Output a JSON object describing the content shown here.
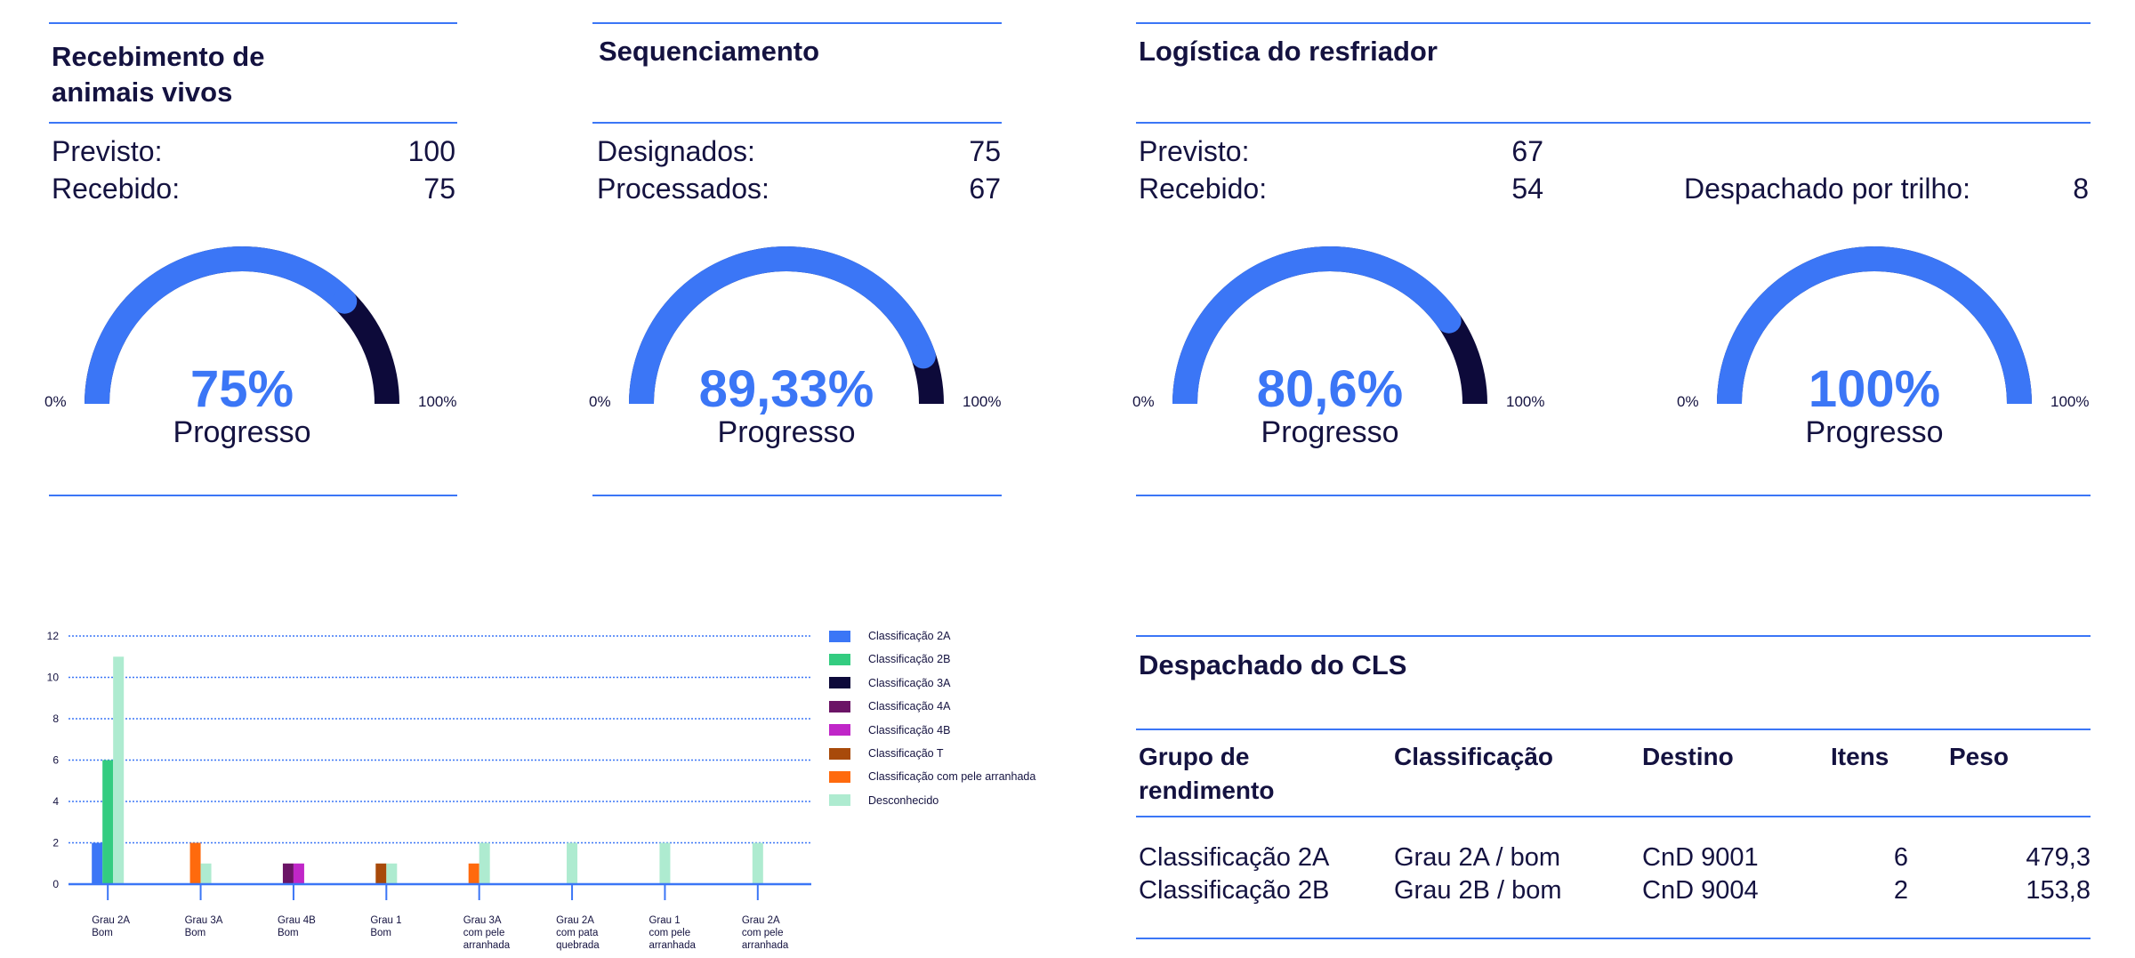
{
  "colors": {
    "accent": "#3b76f6",
    "track": "#0d0a3a",
    "text": "#141240"
  },
  "cards": [
    {
      "title": "Recebimento de animais vivos",
      "rows": [
        {
          "label": "Previsto:",
          "value": "100"
        },
        {
          "label": "Recebido:",
          "value": "75"
        }
      ],
      "gauges": [
        {
          "percent_label": "75%",
          "progress": 0.75,
          "caption": "Progresso",
          "min_label": "0%",
          "max_label": "100%"
        }
      ]
    },
    {
      "title": "Sequenciamento",
      "rows": [
        {
          "label": "Designados:",
          "value": "75"
        },
        {
          "label": "Processados:",
          "value": "67"
        }
      ],
      "gauges": [
        {
          "percent_label": "89,33%",
          "progress": 0.8933,
          "caption": "Progresso",
          "min_label": "0%",
          "max_label": "100%"
        }
      ]
    },
    {
      "title": "Logística do resfriador",
      "rows": [
        {
          "label": "Previsto:",
          "value": "67"
        },
        {
          "label": "Recebido:",
          "value": "54"
        },
        {
          "label": "Despachado por trilho:",
          "value": "8"
        }
      ],
      "gauges": [
        {
          "percent_label": "80,6%",
          "progress": 0.806,
          "caption": "Progresso",
          "min_label": "0%",
          "max_label": "100%"
        },
        {
          "percent_label": "100%",
          "progress": 1.0,
          "caption": "Progresso",
          "min_label": "0%",
          "max_label": "100%"
        }
      ]
    }
  ],
  "chart_data": {
    "type": "bar",
    "title": "",
    "xlabel": "",
    "ylabel": "",
    "ylim": [
      0,
      12
    ],
    "yticks": [
      "0",
      "2",
      "4",
      "6",
      "8",
      "10",
      "12"
    ],
    "grid": true,
    "legend_placement": "right",
    "categories": [
      [
        "Grau 2A",
        "Bom"
      ],
      [
        "Grau 3A",
        "Bom"
      ],
      [
        "Grau 4B",
        "Bom"
      ],
      [
        "Grau 1",
        "Bom"
      ],
      [
        "Grau 3A",
        "com pele",
        "arranhada"
      ],
      [
        "Grau 2A",
        "com pata",
        "quebrada"
      ],
      [
        "Grau 1",
        "com pele",
        "arranhada"
      ],
      [
        "Grau 2A",
        "com pele",
        "arranhada"
      ]
    ],
    "series": [
      {
        "name": "Classificação 2A",
        "color": "#3b76f6",
        "values": [
          2,
          0,
          0,
          0,
          0,
          0,
          0,
          0
        ]
      },
      {
        "name": "Classificação 2B",
        "color": "#33cc80",
        "values": [
          6,
          0,
          0,
          0,
          0,
          0,
          0,
          0
        ]
      },
      {
        "name": "Classificação 3A",
        "color": "#0d0a3a",
        "values": [
          0,
          0,
          0,
          0,
          0,
          0,
          0,
          0
        ]
      },
      {
        "name": "Classificação 4A",
        "color": "#6b1466",
        "values": [
          0,
          0,
          1,
          0,
          0,
          0,
          0,
          0
        ]
      },
      {
        "name": "Classificação 4B",
        "color": "#c026c8",
        "values": [
          0,
          0,
          1,
          0,
          0,
          0,
          0,
          0
        ]
      },
      {
        "name": "Classificação T",
        "color": "#a84a0a",
        "values": [
          0,
          0,
          0,
          1,
          0,
          0,
          0,
          0
        ]
      },
      {
        "name": "Classificação com pele arranhada",
        "color": "#ff6a0d",
        "values": [
          0,
          2,
          0,
          0,
          1,
          0,
          0,
          0
        ]
      },
      {
        "name": "Desconhecido",
        "color": "#aeebd0",
        "values": [
          11,
          1,
          0,
          1,
          2,
          2,
          2,
          2
        ]
      }
    ]
  },
  "table": {
    "title": "Despachado do CLS",
    "headers": [
      "Grupo de rendimento",
      "Classificação",
      "Destino",
      "Itens",
      "Peso"
    ],
    "rows": [
      [
        "Classificação 2A",
        "Grau 2A / bom",
        "CnD 9001",
        "6",
        "479,3"
      ],
      [
        "Classificação 2B",
        "Grau 2B / bom",
        "CnD 9004",
        "2",
        "153,8"
      ]
    ]
  }
}
